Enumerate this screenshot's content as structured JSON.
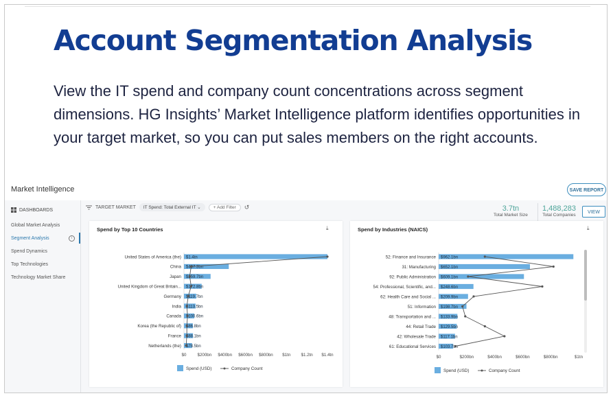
{
  "hero": {
    "title": "Account Segmentation Analysis",
    "description": "View the IT spend and company count concentrations across segment dimensions. HG Insights’ Market Intelligence platform identifies opportunities in your target market, so you can put sales members on the right accounts."
  },
  "app": {
    "title": "Market Intelligence",
    "save_report": "SAVE REPORT"
  },
  "sidebar": {
    "header": "DASHBOARDS",
    "items": [
      {
        "label": "Global Market Analysis"
      },
      {
        "label": "Segment Analysis",
        "active": true
      },
      {
        "label": "Spend Dynamics"
      },
      {
        "label": "Top Technologies"
      },
      {
        "label": "Technology Market Share"
      }
    ]
  },
  "filters": {
    "label": "TARGET MARKET",
    "pill": "IT Spend: Total External IT",
    "add_filter": "+ Add Filter"
  },
  "kpis": [
    {
      "value": "3.7tn",
      "label": "Total Market Size"
    },
    {
      "value": "1,488,283",
      "label": "Total Companies"
    }
  ],
  "view_button": "VIEW",
  "colors": {
    "bar": "#6aaee0",
    "line": "#555555",
    "accent": "#2b78ad",
    "title": "#123d92",
    "kpi": "#4fa59a"
  },
  "chart_data": [
    {
      "type": "bar",
      "title": "Spend by Top 10 Countries",
      "categories": [
        "United States of America (the)",
        "China",
        "Japan",
        "United Kingdom of Great Britain...",
        "Germany",
        "India",
        "Canada",
        "Korea (the Republic of)",
        "France",
        "Netherlands (the)"
      ],
      "series": [
        {
          "name": "Spend (USD)",
          "type": "bar",
          "values": [
            1400,
            437.3,
            259.7,
            172.8,
            119.7,
            113.5,
            100.6,
            86.8,
            88.1,
            78.5
          ]
        },
        {
          "name": "Company Count",
          "type": "line",
          "values": [
            1.0,
            0.05,
            0.04,
            0.05,
            0.03,
            0.02,
            0.025,
            0.02,
            0.02,
            0.015
          ]
        }
      ],
      "data_labels": [
        "$1.4tn",
        "$437.3bn",
        "$259.7bn",
        "$172.8bn",
        "$119.7bn",
        "$113.5bn",
        "$100.6bn",
        "$86.8bn",
        "$88.1bn",
        "$78.5bn"
      ],
      "xticks": [
        "$0",
        "$200bn",
        "$400bn",
        "$600bn",
        "$800bn",
        "$1tn",
        "$1.2tn",
        "$1.4tn"
      ],
      "xlim": [
        0,
        1400
      ],
      "legend": "bottom"
    },
    {
      "type": "bar",
      "title": "Spend by Industries (NAICS)",
      "categories": [
        "52: Finance and Insurance",
        "31: Manufacturing",
        "92: Public Administration",
        "54: Professional, Scientific, and...",
        "62: Health Care and Social ...",
        "51: Information",
        "48: Transportation and ...",
        "44: Retail Trade",
        "42: Wholesale Trade",
        "61: Educational Services"
      ],
      "series": [
        {
          "name": "Spend (USD)",
          "type": "bar",
          "values": [
            962.1,
            652.1,
            609.1,
            248.6,
            209.9,
            198.7,
            133.9,
            129.5,
            117.1,
            103.7
          ]
        },
        {
          "name": "Company Count",
          "type": "line",
          "values": [
            0.33,
            0.82,
            0.21,
            0.74,
            0.25,
            0.17,
            0.19,
            0.33,
            0.47,
            0.12
          ]
        }
      ],
      "data_labels": [
        "$962.1bn",
        "$652.1bn",
        "$609.1bn",
        "$248.6bn",
        "$209.9bn",
        "$198.7bn",
        "$133.9bn",
        "$129.5bn",
        "$117.1bn",
        "$103.7bn"
      ],
      "xticks": [
        "$0",
        "$200bn",
        "$400bn",
        "$600bn",
        "$800bn",
        "$1tn"
      ],
      "xlim": [
        0,
        1000
      ],
      "legend": "bottom"
    }
  ]
}
